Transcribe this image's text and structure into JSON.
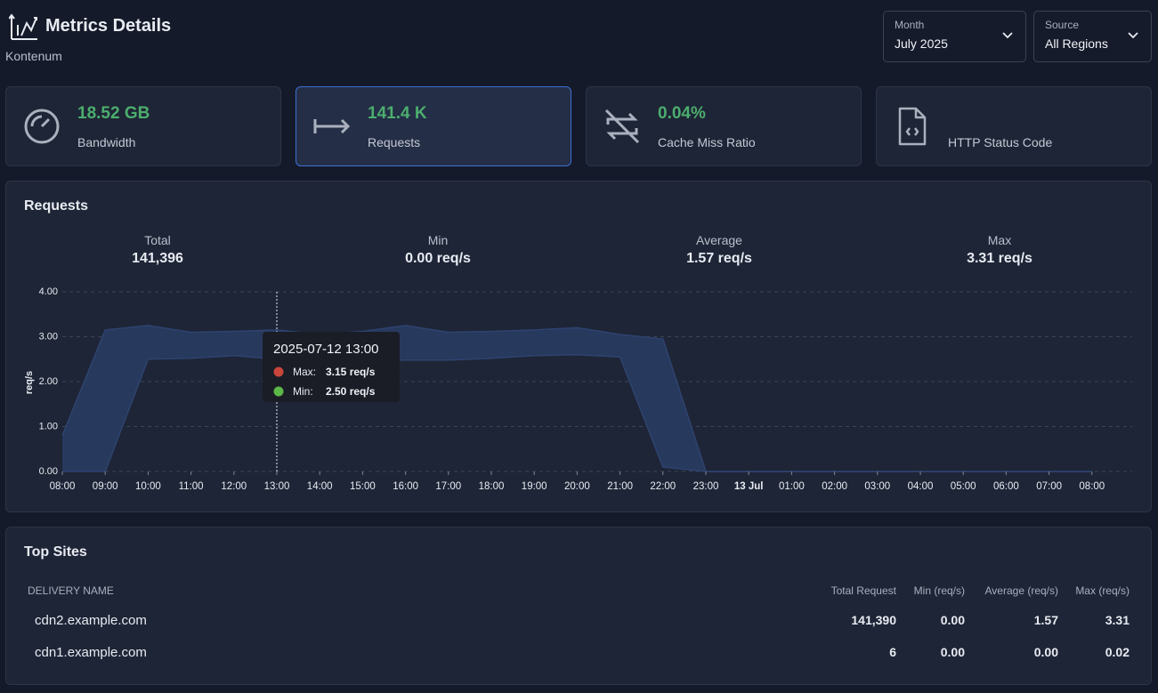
{
  "header": {
    "title": "Metrics Details",
    "subtitle": "Kontenum"
  },
  "filters": [
    {
      "label": "Month",
      "value": "July 2025"
    },
    {
      "label": "Source",
      "value": "All Regions"
    }
  ],
  "cards": [
    {
      "value": "18.52 GB",
      "label": "Bandwidth"
    },
    {
      "value": "141.4 K",
      "label": "Requests"
    },
    {
      "value": "0.04%",
      "label": "Cache Miss Ratio"
    },
    {
      "label": "HTTP Status Code"
    }
  ],
  "requests_panel": {
    "title": "Requests",
    "stats": [
      {
        "label": "Total",
        "value": "141,396"
      },
      {
        "label": "Min",
        "value": "0.00 req/s"
      },
      {
        "label": "Average",
        "value": "1.57 req/s"
      },
      {
        "label": "Max",
        "value": "3.31 req/s"
      }
    ]
  },
  "chart_data": {
    "type": "range-area",
    "y_label": "req/s",
    "categories": [
      "08:00",
      "09:00",
      "10:00",
      "11:00",
      "12:00",
      "13:00",
      "14:00",
      "15:00",
      "16:00",
      "17:00",
      "18:00",
      "19:00",
      "20:00",
      "21:00",
      "22:00",
      "23:00",
      "13 Jul",
      "01:00",
      "02:00",
      "03:00",
      "04:00",
      "05:00",
      "06:00",
      "07:00",
      "08:00"
    ],
    "series": [
      {
        "color": "#c9463a",
        "values": [
          0.8,
          3.15,
          3.25,
          3.1,
          3.12,
          3.15,
          3.05,
          3.12,
          3.25,
          3.1,
          3.12,
          3.15,
          3.2,
          3.05,
          2.95,
          0,
          0,
          0,
          0,
          0,
          0,
          0,
          0,
          0,
          0
        ]
      },
      {
        "color": "#5cb848",
        "values": [
          0,
          0,
          2.5,
          2.52,
          2.58,
          2.5,
          2.45,
          2.45,
          2.48,
          2.48,
          2.52,
          2.58,
          2.6,
          2.55,
          0.1,
          0,
          0,
          0,
          0,
          0,
          0,
          0,
          0,
          0,
          0
        ]
      }
    ],
    "band_color": "#27395c",
    "ylim": [
      0,
      4
    ],
    "yticks": [
      {
        "value": 0,
        "label": "0.00"
      },
      {
        "value": 1,
        "label": "1.00"
      },
      {
        "value": 2,
        "label": "2.00"
      },
      {
        "value": 3,
        "label": "3.00"
      },
      {
        "value": 4,
        "label": "4.00"
      }
    ],
    "grid": true,
    "tooltip": {
      "category_index": 5,
      "title": "2025-07-12 13:00",
      "items": [
        {
          "label": "Max:",
          "value": "3.15 req/s"
        },
        {
          "label": "Min:",
          "value": "2.50 req/s"
        }
      ]
    }
  },
  "top_sites": {
    "title": "Top Sites",
    "columns": [
      "DELIVERY NAME",
      "Total Request",
      "Min (req/s)",
      "Average (req/s)",
      "Max (req/s)"
    ],
    "rows": [
      [
        "cdn2.example.com",
        "141,390",
        "0.00",
        "1.57",
        "3.31"
      ],
      [
        "cdn1.example.com",
        "6",
        "0.00",
        "0.00",
        "0.02"
      ]
    ]
  }
}
